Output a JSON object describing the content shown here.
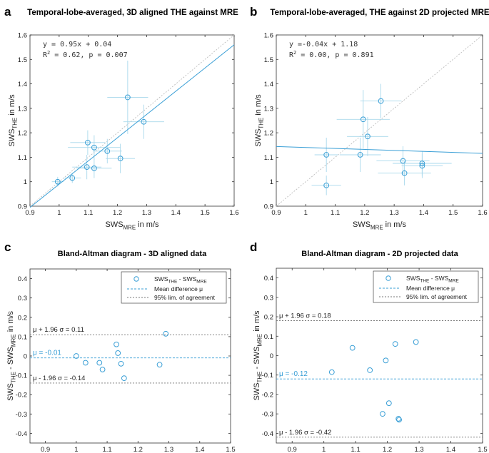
{
  "panels": {
    "a": {
      "letter": "a",
      "title": "Temporal-lobe-averaged, 3D aligned THE against MRE"
    },
    "b": {
      "letter": "b",
      "title": "Temporal-lobe-averaged, THE against 2D projected MRE"
    },
    "c": {
      "letter": "c",
      "title": "Bland-Altman diagram - 3D aligned data"
    },
    "d": {
      "letter": "d",
      "title": "Bland-Altman diagram - 2D projected data"
    }
  },
  "colors": {
    "accent": "#3a9fd6",
    "errorbar": "#a8d8ec",
    "identity": "#bdbdbd",
    "axis": "#333333"
  },
  "chart_data": [
    {
      "id": "a",
      "type": "scatter",
      "title": "Temporal-lobe-averaged, 3D aligned THE against MRE",
      "xlabel": "SWS_MRE in m/s",
      "ylabel": "SWS_THE in m/s",
      "xlim": [
        0.9,
        1.6
      ],
      "ylim": [
        0.9,
        1.6
      ],
      "xticks": [
        "0.9",
        "1",
        "1.1",
        "1.2",
        "1.3",
        "1.4",
        "1.5",
        "1.6"
      ],
      "yticks": [
        "0.9",
        "1",
        "1.1",
        "1.2",
        "1.3",
        "1.4",
        "1.5",
        "1.6"
      ],
      "annotation": [
        "y = 0.95x + 0.04",
        "R",
        "2",
        " = 0.62, p = 0.007"
      ],
      "fit": {
        "slope": 0.95,
        "intercept": 0.04
      },
      "identity_line": true,
      "points": [
        {
          "x": 0.995,
          "y": 1.0,
          "xerr": 0.02,
          "yerr": 0.02
        },
        {
          "x": 1.045,
          "y": 1.015,
          "xerr": 0.03,
          "yerr": 0.02
        },
        {
          "x": 1.095,
          "y": 1.06,
          "xerr": 0.05,
          "yerr": 0.05
        },
        {
          "x": 1.098,
          "y": 1.16,
          "xerr": 0.06,
          "yerr": 0.05
        },
        {
          "x": 1.12,
          "y": 1.055,
          "xerr": 0.06,
          "yerr": 0.04
        },
        {
          "x": 1.12,
          "y": 1.14,
          "xerr": 0.09,
          "yerr": 0.05
        },
        {
          "x": 1.165,
          "y": 1.125,
          "xerr": 0.05,
          "yerr": 0.05
        },
        {
          "x": 1.21,
          "y": 1.095,
          "xerr": 0.05,
          "yerr": 0.06
        },
        {
          "x": 1.235,
          "y": 1.345,
          "xerr": 0.07,
          "yerr": 0.15
        },
        {
          "x": 1.29,
          "y": 1.245,
          "xerr": 0.07,
          "yerr": 0.07
        }
      ]
    },
    {
      "id": "b",
      "type": "scatter",
      "title": "Temporal-lobe-averaged, THE against 2D projected MRE",
      "xlabel": "SWS_MRE in m/s",
      "ylabel": "SWS_THE in m/s",
      "xlim": [
        0.9,
        1.6
      ],
      "ylim": [
        0.9,
        1.6
      ],
      "xticks": [
        "0.9",
        "1",
        "1.1",
        "1.2",
        "1.3",
        "1.4",
        "1.5",
        "1.6"
      ],
      "yticks": [
        "0.9",
        "1",
        "1.1",
        "1.2",
        "1.3",
        "1.4",
        "1.5",
        "1.6"
      ],
      "annotation": [
        "y =-0.04x + 1.18",
        "R",
        "2",
        " = 0.00, p = 0.891"
      ],
      "fit": {
        "slope": -0.04,
        "intercept": 1.18
      },
      "identity_line": true,
      "points": [
        {
          "x": 1.07,
          "y": 1.11,
          "xerr": 0.04,
          "yerr": 0.07
        },
        {
          "x": 1.07,
          "y": 0.985,
          "xerr": 0.05,
          "yerr": 0.04
        },
        {
          "x": 1.185,
          "y": 1.11,
          "xerr": 0.07,
          "yerr": 0.07
        },
        {
          "x": 1.195,
          "y": 1.255,
          "xerr": 0.09,
          "yerr": 0.12
        },
        {
          "x": 1.21,
          "y": 1.185,
          "xerr": 0.07,
          "yerr": 0.08
        },
        {
          "x": 1.255,
          "y": 1.33,
          "xerr": 0.07,
          "yerr": 0.07
        },
        {
          "x": 1.33,
          "y": 1.085,
          "xerr": 0.09,
          "yerr": 0.06
        },
        {
          "x": 1.335,
          "y": 1.035,
          "xerr": 0.09,
          "yerr": 0.05
        },
        {
          "x": 1.395,
          "y": 1.065,
          "xerr": 0.07,
          "yerr": 0.05
        },
        {
          "x": 1.395,
          "y": 1.075,
          "xerr": 0.1,
          "yerr": 0.05
        }
      ]
    },
    {
      "id": "c",
      "type": "scatter",
      "title": "Bland-Altman diagram - 3D aligned data",
      "xlabel": "(SWS_THE + SWS_MRE) / 2  in m/s",
      "ylabel": "SWS_THE - SWS_MRE  in m/s",
      "xlim": [
        0.85,
        1.5
      ],
      "ylim": [
        -0.45,
        0.45
      ],
      "xticks": [
        {
          "v": 0.9,
          "t": "0.9"
        },
        {
          "v": 1.0,
          "t": "1"
        },
        {
          "v": 1.1,
          "t": "1.1"
        },
        {
          "v": 1.2,
          "t": "1.2"
        },
        {
          "v": 1.3,
          "t": "1.3"
        },
        {
          "v": 1.4,
          "t": "1.4"
        },
        {
          "v": 1.5,
          "t": "1.5"
        }
      ],
      "yticks": [
        {
          "v": -0.4,
          "t": "-0.4"
        },
        {
          "v": -0.3,
          "t": "-0.3"
        },
        {
          "v": -0.2,
          "t": "-0.2"
        },
        {
          "v": -0.1,
          "t": "-0.1"
        },
        {
          "v": 0,
          "t": "0"
        },
        {
          "v": 0.1,
          "t": "0.1"
        },
        {
          "v": 0.2,
          "t": "0.2"
        },
        {
          "v": 0.3,
          "t": "0.3"
        },
        {
          "v": 0.4,
          "t": "0.4"
        }
      ],
      "mean": -0.01,
      "upper": 0.11,
      "lower": -0.14,
      "mean_label": "μ = -0.01",
      "upper_label": "μ + 1.96 σ = 0.11",
      "lower_label": "μ - 1.96 σ = -0.14",
      "legend": [
        "SWS_THE - SWS_MRE",
        "Mean difference μ",
        "95% lim. of agreement"
      ],
      "points": [
        {
          "x": 1.0,
          "y": 0.0
        },
        {
          "x": 1.03,
          "y": -0.035
        },
        {
          "x": 1.075,
          "y": -0.035
        },
        {
          "x": 1.085,
          "y": -0.07
        },
        {
          "x": 1.13,
          "y": 0.06
        },
        {
          "x": 1.135,
          "y": 0.015
        },
        {
          "x": 1.145,
          "y": -0.04
        },
        {
          "x": 1.155,
          "y": -0.115
        },
        {
          "x": 1.27,
          "y": -0.045
        },
        {
          "x": 1.29,
          "y": 0.115
        }
      ]
    },
    {
      "id": "d",
      "type": "scatter",
      "title": "Bland-Altman diagram - 2D projected data",
      "xlabel": "(SWS_THE + SWS_MRE) / 2  in m/s",
      "ylabel": "SWS_THE - SWS_MRE  in m/s",
      "xlim": [
        0.85,
        1.5
      ],
      "ylim": [
        -0.45,
        0.45
      ],
      "xticks": [
        {
          "v": 0.9,
          "t": "0.9"
        },
        {
          "v": 1.0,
          "t": "1"
        },
        {
          "v": 1.1,
          "t": "1.1"
        },
        {
          "v": 1.2,
          "t": "1.2"
        },
        {
          "v": 1.3,
          "t": "1.3"
        },
        {
          "v": 1.4,
          "t": "1.4"
        },
        {
          "v": 1.5,
          "t": "1.5"
        }
      ],
      "yticks": [
        {
          "v": -0.4,
          "t": "-0.4"
        },
        {
          "v": -0.3,
          "t": "-0.3"
        },
        {
          "v": -0.2,
          "t": "-0.2"
        },
        {
          "v": -0.1,
          "t": "-0.1"
        },
        {
          "v": 0,
          "t": "0"
        },
        {
          "v": 0.1,
          "t": "0.1"
        },
        {
          "v": 0.2,
          "t": "0.2"
        },
        {
          "v": 0.3,
          "t": "0.3"
        },
        {
          "v": 0.4,
          "t": "0.4"
        }
      ],
      "mean": -0.12,
      "upper": 0.18,
      "lower": -0.42,
      "mean_label": "μ = -0.12",
      "upper_label": "μ + 1.96 σ = 0.18",
      "lower_label": "μ - 1.96 σ = -0.42",
      "legend": [
        "SWS_THE - SWS_MRE",
        "Mean difference μ",
        "95% lim. of agreement"
      ],
      "points": [
        {
          "x": 1.025,
          "y": -0.085
        },
        {
          "x": 1.09,
          "y": 0.04
        },
        {
          "x": 1.145,
          "y": -0.075
        },
        {
          "x": 1.185,
          "y": -0.3
        },
        {
          "x": 1.195,
          "y": -0.025
        },
        {
          "x": 1.205,
          "y": -0.245
        },
        {
          "x": 1.225,
          "y": 0.06
        },
        {
          "x": 1.235,
          "y": -0.325
        },
        {
          "x": 1.237,
          "y": -0.33
        },
        {
          "x": 1.29,
          "y": 0.07
        }
      ]
    }
  ]
}
